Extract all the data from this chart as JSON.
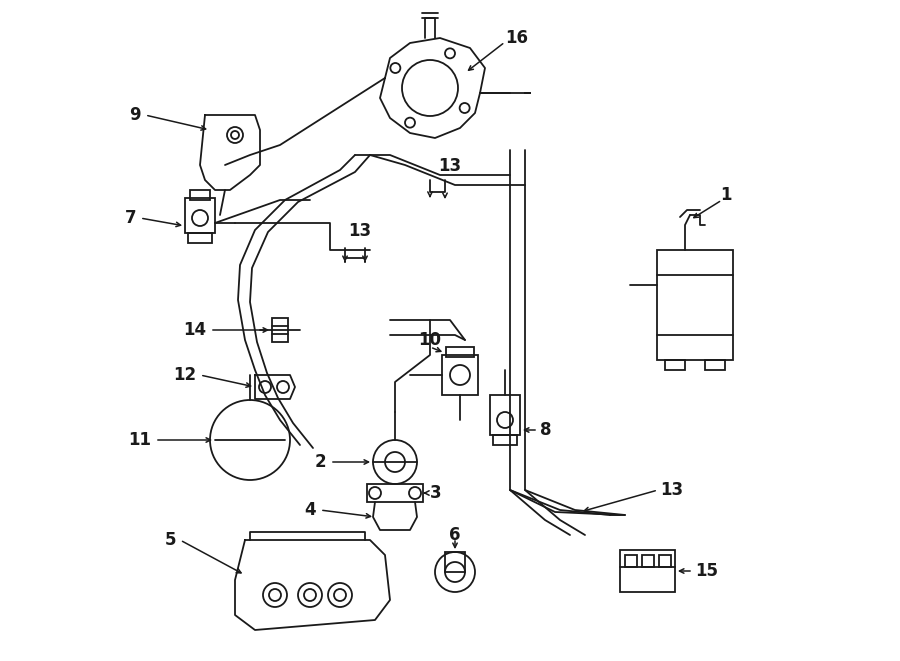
{
  "bg_color": "#ffffff",
  "line_color": "#1a1a1a",
  "lw": 1.3,
  "fig_width": 9.0,
  "fig_height": 6.61,
  "dpi": 100
}
